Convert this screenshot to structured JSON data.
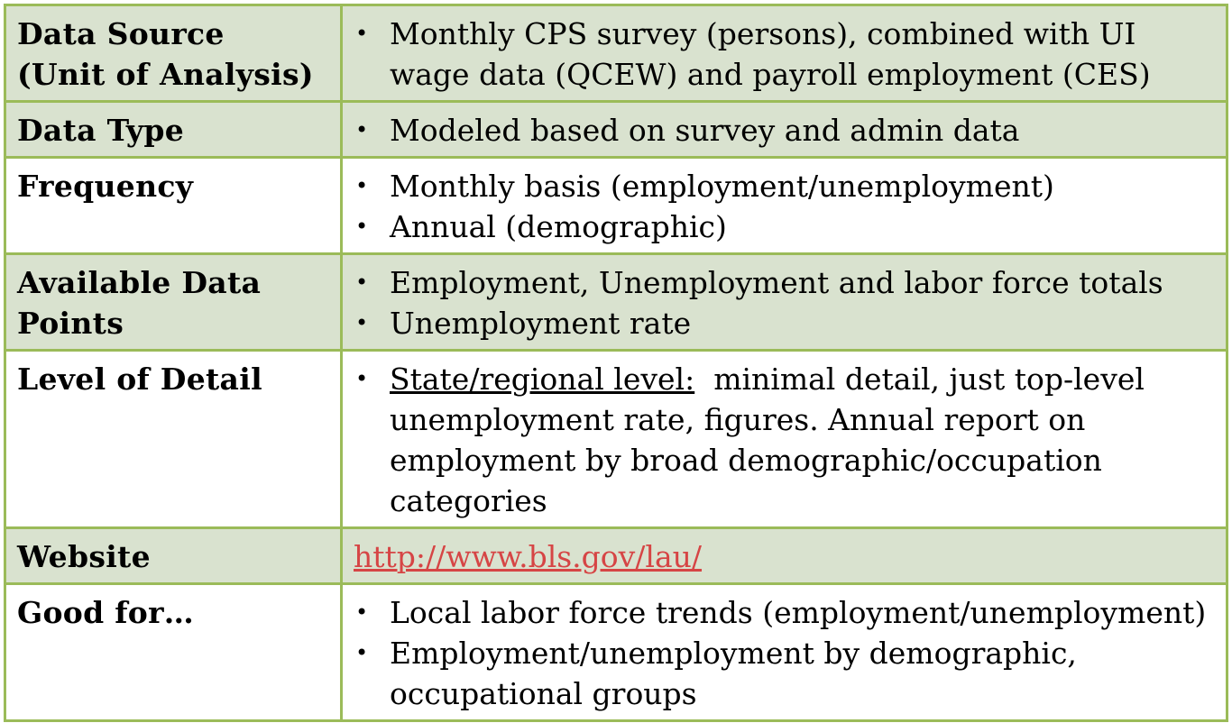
{
  "rows": [
    {
      "label": "Data Source (Unit of Analysis)",
      "label_lines": [
        "Data Source",
        "(Unit of Analysis)"
      ],
      "items": [
        "Monthly CPS survey (persons), combined with UI wage data (QCEW) and payroll employment (CES)"
      ]
    },
    {
      "label": "Data Type",
      "items": [
        "Modeled based on survey and admin data"
      ]
    },
    {
      "label": "Frequency",
      "items": [
        "Monthly basis (employment/unemployment)",
        "Annual (demographic)"
      ]
    },
    {
      "label": "Available Data Points",
      "label_lines": [
        "Available Data",
        "Points"
      ],
      "items": [
        "Employment, Unemployment and labor force totals",
        "Unemployment rate"
      ]
    },
    {
      "label": "Level of Detail",
      "items": [
        {
          "lead": "State/regional level:",
          "text": "minimal detail, just top-level unemployment rate, figures. Annual report on employment by broad demographic/occupation categories"
        }
      ]
    },
    {
      "label": "Website",
      "link": "http://www.bls.gov/lau/"
    },
    {
      "label": "Good for…",
      "items": [
        "Local labor force trends (employment/unemployment)",
        "Employment/unemployment by demographic, occupational groups"
      ]
    }
  ],
  "colors": {
    "border": "#9bbb59",
    "shaded_row": "#d9e2cf",
    "link": "#d64545"
  }
}
